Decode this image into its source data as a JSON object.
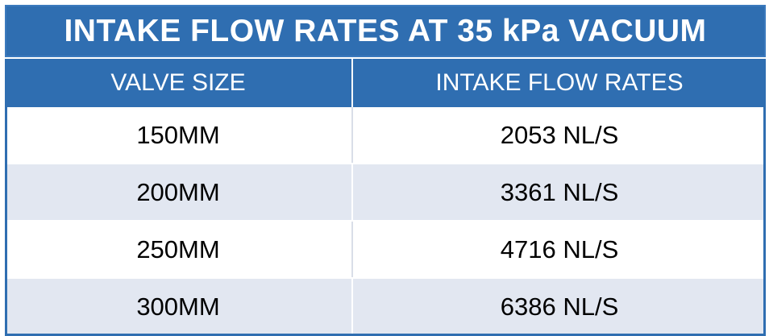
{
  "table": {
    "title": "INTAKE FLOW RATES AT 35 kPa VACUUM",
    "headers": [
      "VALVE SIZE",
      "INTAKE FLOW RATES"
    ],
    "rows": [
      [
        "150MM",
        "2053 NL/S"
      ],
      [
        "200MM",
        "3361 NL/S"
      ],
      [
        "250MM",
        "4716 NL/S"
      ],
      [
        "300MM",
        "6386 NL/S"
      ]
    ]
  },
  "colors": {
    "header_blue": "#2f6eb1",
    "stripe": "#e2e7f1",
    "text": "#000000"
  }
}
